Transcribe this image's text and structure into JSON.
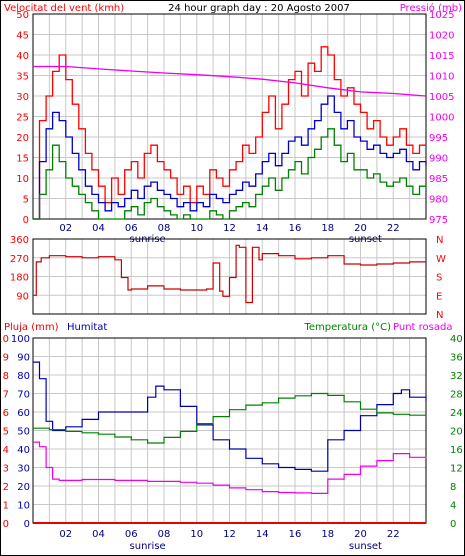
{
  "header": {
    "title": "24 hour graph day : 20 Agosto 2007"
  },
  "colors": {
    "wind": "#ff0000",
    "wind_avg": "#0000cc",
    "wind_low": "#008000",
    "pressure": "#ee00ee",
    "direction": "#cc0000",
    "humidity": "#0000aa",
    "temperature": "#008000",
    "dewpoint": "#ee00ee",
    "rain": "#ee0000",
    "grid": "#c8c8c8"
  },
  "chart_data": [
    {
      "type": "line",
      "title": "24 hour graph day : 20 Agosto 2007",
      "left_axis_label": "Velocitat del vent (kmh)",
      "right_axis_label": "Pressió (mb)",
      "left_ylim": [
        0,
        50
      ],
      "right_ylim": [
        975,
        1025
      ],
      "left_ticks": [
        "0",
        "5",
        "10",
        "15",
        "20",
        "25",
        "30",
        "35",
        "40",
        "45",
        "50"
      ],
      "right_ticks": [
        "975",
        "980",
        "985",
        "990",
        "995",
        "1000",
        "1005",
        "1010",
        "1015",
        "1020",
        "1025"
      ],
      "x_ticks": [
        {
          "hour": 2,
          "label": "02"
        },
        {
          "hour": 4,
          "label": "04"
        },
        {
          "hour": 6,
          "label": "06"
        },
        {
          "hour": 8,
          "label": "08"
        },
        {
          "hour": 10,
          "label": "10"
        },
        {
          "hour": 12,
          "label": "12"
        },
        {
          "hour": 14,
          "label": "14"
        },
        {
          "hour": 16,
          "label": "16"
        },
        {
          "hour": 18,
          "label": "18"
        },
        {
          "hour": 20,
          "label": "20"
        },
        {
          "hour": 22,
          "label": "22"
        }
      ],
      "markers": [
        {
          "hour": 7,
          "label": "sunrise"
        },
        {
          "hour": 20.3,
          "label": "sunset"
        }
      ],
      "series": [
        {
          "key": "gust",
          "axis": "left",
          "color": "#ff0000",
          "x": [
            0,
            0.4,
            0.8,
            1.2,
            1.6,
            2,
            2.4,
            2.8,
            3.2,
            3.6,
            4,
            4.4,
            4.8,
            5.2,
            5.6,
            6,
            6.4,
            6.8,
            7.2,
            7.6,
            8,
            8.4,
            8.8,
            9.2,
            9.6,
            10,
            10.4,
            10.8,
            11.2,
            11.6,
            12,
            12.4,
            12.8,
            13.2,
            13.6,
            14,
            14.4,
            14.8,
            15.2,
            15.6,
            16,
            16.4,
            16.8,
            17.2,
            17.6,
            18,
            18.4,
            18.8,
            19.2,
            19.6,
            20,
            20.4,
            20.8,
            21.2,
            21.6,
            22,
            22.4,
            22.8,
            23.2,
            23.6,
            24
          ],
          "y": [
            0,
            24,
            30,
            36,
            40,
            34,
            28,
            22,
            16,
            12,
            8,
            4,
            10,
            6,
            12,
            14,
            10,
            16,
            18,
            14,
            12,
            10,
            6,
            8,
            4,
            8,
            6,
            12,
            10,
            8,
            12,
            14,
            18,
            16,
            20,
            26,
            30,
            22,
            28,
            34,
            36,
            30,
            38,
            36,
            42,
            40,
            34,
            30,
            32,
            28,
            26,
            22,
            24,
            20,
            18,
            20,
            22,
            18,
            16,
            18,
            18
          ]
        },
        {
          "key": "average",
          "axis": "left",
          "color": "#0000cc",
          "x": [
            0,
            0.4,
            0.8,
            1.2,
            1.6,
            2,
            2.4,
            2.8,
            3.2,
            3.6,
            4,
            4.4,
            4.8,
            5.2,
            5.6,
            6,
            6.4,
            6.8,
            7.2,
            7.6,
            8,
            8.4,
            8.8,
            9.2,
            9.6,
            10,
            10.4,
            10.8,
            11.2,
            11.6,
            12,
            12.4,
            12.8,
            13.2,
            13.6,
            14,
            14.4,
            14.8,
            15.2,
            15.6,
            16,
            16.4,
            16.8,
            17.2,
            17.6,
            18,
            18.4,
            18.8,
            19.2,
            19.6,
            20,
            20.4,
            20.8,
            21.2,
            21.6,
            22,
            22.4,
            22.8,
            23.2,
            23.6,
            24
          ],
          "y": [
            0,
            14,
            22,
            26,
            24,
            20,
            16,
            12,
            8,
            6,
            4,
            2,
            4,
            3,
            5,
            7,
            5,
            8,
            9,
            7,
            6,
            5,
            3,
            4,
            2,
            4,
            3,
            6,
            5,
            4,
            6,
            7,
            9,
            8,
            11,
            14,
            16,
            13,
            16,
            19,
            20,
            18,
            22,
            24,
            28,
            30,
            26,
            22,
            24,
            20,
            19,
            17,
            18,
            16,
            15,
            16,
            17,
            14,
            12,
            14,
            13
          ]
        },
        {
          "key": "low",
          "axis": "left",
          "color": "#008000",
          "x": [
            0,
            0.4,
            0.8,
            1.2,
            1.6,
            2,
            2.4,
            2.8,
            3.2,
            3.6,
            4,
            4.4,
            4.8,
            5.2,
            5.6,
            6,
            6.4,
            6.8,
            7.2,
            7.6,
            8,
            8.4,
            8.8,
            9.2,
            9.6,
            10,
            10.4,
            10.8,
            11.2,
            11.6,
            12,
            12.4,
            12.8,
            13.2,
            13.6,
            14,
            14.4,
            14.8,
            15.2,
            15.6,
            16,
            16.4,
            16.8,
            17.2,
            17.6,
            18,
            18.4,
            18.8,
            19.2,
            19.6,
            20,
            20.4,
            20.8,
            21.2,
            21.6,
            22,
            22.4,
            22.8,
            23.2,
            23.6,
            24
          ],
          "y": [
            0,
            6,
            12,
            18,
            14,
            10,
            8,
            6,
            4,
            2,
            0,
            0,
            0,
            0,
            2,
            3,
            1,
            4,
            5,
            3,
            2,
            1,
            0,
            1,
            0,
            0,
            0,
            2,
            1,
            0,
            2,
            3,
            4,
            3,
            6,
            8,
            10,
            7,
            10,
            12,
            14,
            11,
            15,
            17,
            20,
            22,
            18,
            14,
            16,
            12,
            12,
            10,
            11,
            9,
            8,
            9,
            10,
            8,
            6,
            8,
            7
          ]
        },
        {
          "key": "pressure",
          "axis": "right",
          "color": "#ee00ee",
          "x": [
            0,
            2,
            4,
            6,
            8,
            10,
            12,
            14,
            16,
            18,
            20,
            22,
            24
          ],
          "y": [
            1012.2,
            1012.2,
            1011.6,
            1011.1,
            1010.6,
            1010.2,
            1009.7,
            1009.1,
            1008.2,
            1007.0,
            1006.0,
            1005.6,
            1005.0
          ]
        }
      ]
    },
    {
      "type": "line",
      "left_ylim": [
        0,
        360
      ],
      "left_ticks": [
        "90",
        "180",
        "270",
        "360"
      ],
      "right_ticks": [
        "N",
        "W",
        "S",
        "E",
        "N"
      ],
      "series": [
        {
          "key": "direction",
          "axis": "left",
          "color": "#cc0000",
          "x": [
            0,
            0.2,
            0.5,
            1,
            2,
            3,
            4,
            5,
            5.4,
            5.8,
            6,
            7,
            8,
            9,
            10,
            10.6,
            11,
            11.4,
            11.6,
            12,
            12.4,
            12.6,
            13,
            13.4,
            13.8,
            14,
            15,
            16,
            17,
            18,
            19,
            20,
            21,
            22,
            23,
            24
          ],
          "y": [
            90,
            250,
            270,
            280,
            275,
            270,
            275,
            260,
            175,
            115,
            120,
            135,
            120,
            115,
            115,
            120,
            245,
            110,
            85,
            175,
            330,
            320,
            55,
            320,
            260,
            290,
            280,
            265,
            270,
            280,
            240,
            235,
            240,
            245,
            250,
            250
          ]
        }
      ]
    },
    {
      "type": "line",
      "left_axis_label": "Pluja (mm)",
      "humidity_label": "Humitat",
      "right_axis_label": "Temperatura (°C)",
      "dewpoint_label": "Punt rosada",
      "rain_ylim": [
        0,
        10
      ],
      "humidity_ylim": [
        0,
        100
      ],
      "temperature_ylim": [
        0,
        40
      ],
      "rain_ticks": [
        "0",
        "1",
        "2",
        "3",
        "4",
        "5",
        "6",
        "7",
        "8",
        "9",
        "10"
      ],
      "humidity_ticks": [
        "0",
        "10",
        "20",
        "30",
        "40",
        "50",
        "60",
        "70",
        "80",
        "90",
        "100"
      ],
      "temperature_ticks": [
        "0",
        "4",
        "8",
        "12",
        "16",
        "20",
        "24",
        "28",
        "32",
        "36",
        "40"
      ],
      "x_ticks": [
        {
          "hour": 2,
          "label": "02"
        },
        {
          "hour": 4,
          "label": "04"
        },
        {
          "hour": 6,
          "label": "06"
        },
        {
          "hour": 8,
          "label": "08"
        },
        {
          "hour": 10,
          "label": "10"
        },
        {
          "hour": 12,
          "label": "12"
        },
        {
          "hour": 14,
          "label": "14"
        },
        {
          "hour": 16,
          "label": "16"
        },
        {
          "hour": 18,
          "label": "18"
        },
        {
          "hour": 20,
          "label": "20"
        },
        {
          "hour": 22,
          "label": "22"
        }
      ],
      "markers": [
        {
          "hour": 7,
          "label": "sunrise"
        },
        {
          "hour": 20.3,
          "label": "sunset"
        }
      ],
      "series": [
        {
          "key": "humidity",
          "axis": "humidity",
          "color": "#0000aa",
          "x": [
            0,
            0.4,
            0.8,
            1.2,
            2,
            3,
            4,
            5,
            6,
            7,
            7.5,
            8,
            9,
            10,
            11,
            12,
            13,
            14,
            15,
            16,
            17,
            17.6,
            18,
            19,
            20,
            21,
            22,
            22.5,
            23,
            24
          ],
          "y": [
            87,
            78,
            55,
            50,
            52,
            56,
            60,
            60,
            60,
            68,
            74,
            72,
            63,
            53,
            45,
            40,
            35,
            32,
            30,
            29,
            28,
            28,
            45,
            50,
            58,
            64,
            70,
            72,
            68,
            66
          ]
        },
        {
          "key": "temperature",
          "axis": "temperature",
          "color": "#008000",
          "x": [
            0,
            0.5,
            1,
            2,
            3,
            4,
            5,
            6,
            7,
            8,
            9,
            10,
            11,
            12,
            13,
            14,
            15,
            16,
            17,
            18,
            19,
            20,
            21,
            22,
            23,
            24
          ],
          "y": [
            20.5,
            20.5,
            20.2,
            19.8,
            19.5,
            19.2,
            18.6,
            18.0,
            17.3,
            18.5,
            19.8,
            21.5,
            23.0,
            24.5,
            25.5,
            26.0,
            27.0,
            27.5,
            28.0,
            27.6,
            26.2,
            24.6,
            23.8,
            23.5,
            23.3,
            23.3
          ]
        },
        {
          "key": "dewpoint",
          "axis": "temperature",
          "color": "#ee00ee",
          "x": [
            0,
            0.4,
            0.8,
            1.2,
            1.6,
            2,
            3,
            4,
            5,
            6,
            7,
            8,
            9,
            10,
            11,
            12,
            13,
            14,
            15,
            16,
            17,
            17.6,
            18,
            19,
            20,
            21,
            22,
            23,
            24
          ],
          "y": [
            17.5,
            16.5,
            12,
            9.5,
            9.2,
            9.2,
            9.4,
            9.4,
            9.2,
            9.2,
            9.0,
            9.0,
            8.8,
            8.6,
            8.2,
            7.6,
            7.2,
            6.8,
            6.6,
            6.5,
            6.4,
            6.4,
            9.5,
            10.5,
            12.3,
            13.5,
            15.0,
            14.2,
            14.0
          ]
        },
        {
          "key": "rain",
          "axis": "rain",
          "color": "#ee0000",
          "x": [
            0,
            24
          ],
          "y": [
            0,
            0
          ]
        }
      ]
    }
  ]
}
